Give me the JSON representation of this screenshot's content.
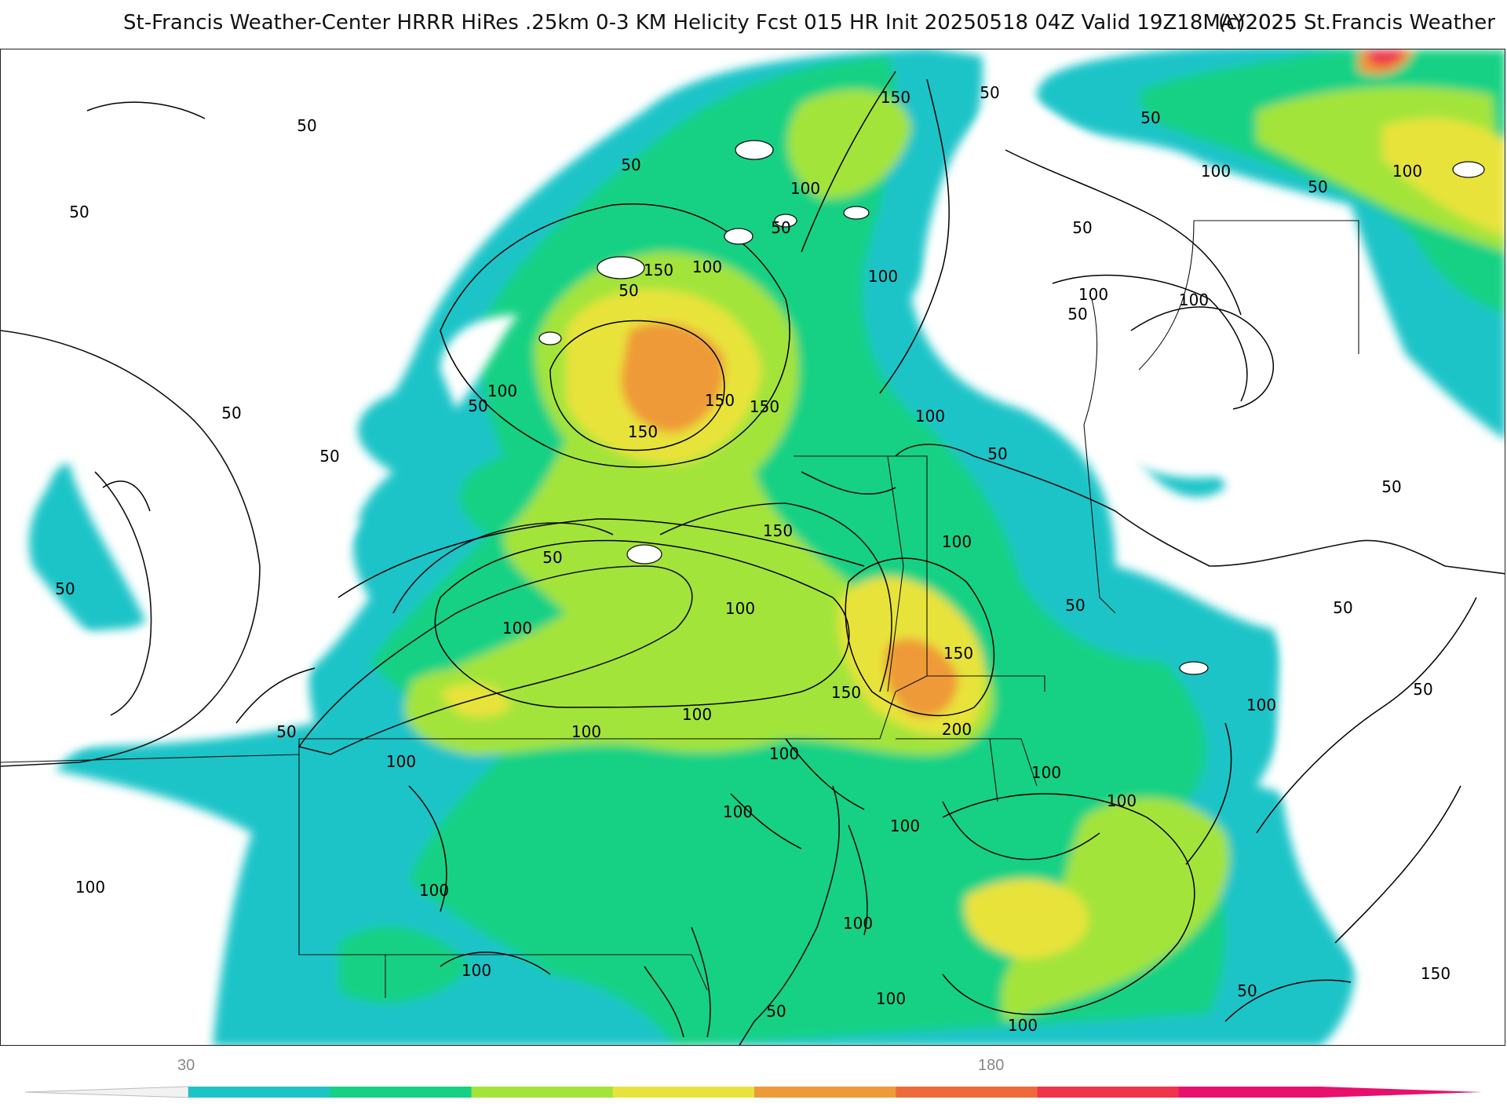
{
  "header": {
    "title": "St-Francis Weather-Center HRRR HiRes .25km 0-3 KM Helicity Fcst 015 HR Init 20250518 04Z  Valid 19Z18MAY2025",
    "copyright": "(c)2025 St.Francis Weather"
  },
  "map": {
    "variable": "0-3 KM Helicity",
    "contour_labels": [
      "50",
      "50",
      "50",
      "50",
      "50",
      "50",
      "50",
      "50",
      "50",
      "50",
      "50",
      "50",
      "50",
      "50",
      "50",
      "50",
      "50",
      "50",
      "50",
      "50",
      "50",
      "50",
      "50",
      "100",
      "100",
      "100",
      "100",
      "100",
      "100",
      "100",
      "100",
      "100",
      "100",
      "100",
      "100",
      "100",
      "100",
      "100",
      "100",
      "100",
      "100",
      "100",
      "100",
      "100",
      "100",
      "100",
      "100",
      "100",
      "100",
      "100",
      "150",
      "150",
      "150",
      "150",
      "150",
      "150",
      "150",
      "150",
      "150",
      "200"
    ]
  },
  "colorbar": {
    "tick_labels": [
      "30",
      "180"
    ],
    "colors": [
      "#1cc4c8",
      "#14d184",
      "#a3e43a",
      "#e8e33a",
      "#ef9a38",
      "#ef6a3a",
      "#f0344a",
      "#e8106c"
    ]
  }
}
